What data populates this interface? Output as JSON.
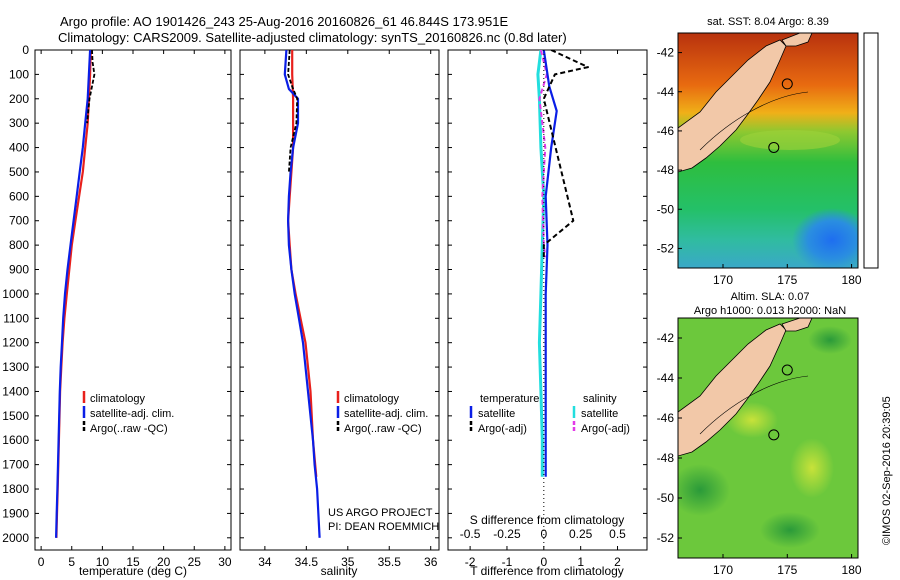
{
  "header": {
    "line1": "Argo profile: AO 1901426_243 25-Aug-2016 20160826_61 46.844S 173.951E",
    "line2": "Climatology: CARS2009. Satellite-adjusted climatology: synTS_20160826.nc (0.8d later)"
  },
  "colors": {
    "climatology": "#e8201c",
    "satellite": "#0a1ee6",
    "argo": "#000000",
    "sal_satellite": "#22dede",
    "sal_argo": "#e23ae8",
    "land": "#f2c8a8"
  },
  "chart_data": [
    {
      "type": "line",
      "name": "temperature-profile",
      "xlabel": "temperature (deg C)",
      "xlim": [
        -1,
        31
      ],
      "ylim": [
        0,
        2050
      ],
      "x_ticks": [
        0,
        5,
        10,
        15,
        20,
        25,
        30
      ],
      "y_ticks": [
        0,
        100,
        200,
        300,
        400,
        500,
        600,
        700,
        800,
        900,
        1000,
        1100,
        1200,
        1300,
        1400,
        1500,
        1600,
        1700,
        1800,
        1900,
        2000
      ],
      "legend": [
        "climatology",
        "satellite-adj. clim.",
        "Argo(..raw -QC)"
      ],
      "series": [
        {
          "name": "climatology",
          "x": [
            8.1,
            8.0,
            7.8,
            7.6,
            7.2,
            6.8,
            6.2,
            5.6,
            5.0,
            4.6,
            4.2,
            3.8,
            3.5,
            3.3,
            3.1,
            3.0,
            2.9,
            2.8,
            2.7,
            2.6,
            2.5
          ],
          "y": [
            0,
            100,
            200,
            300,
            400,
            500,
            600,
            700,
            800,
            900,
            1000,
            1100,
            1200,
            1300,
            1400,
            1500,
            1600,
            1700,
            1800,
            1900,
            2000
          ]
        },
        {
          "name": "satellite-adj. clim.",
          "x": [
            8.0,
            7.8,
            7.6,
            7.2,
            6.8,
            6.3,
            5.8,
            5.3,
            4.8,
            4.3,
            3.9,
            3.6,
            3.4,
            3.2,
            3.05,
            2.95,
            2.85,
            2.75,
            2.65,
            2.55,
            2.45
          ],
          "y": [
            0,
            100,
            200,
            300,
            400,
            500,
            600,
            700,
            800,
            900,
            1000,
            1100,
            1200,
            1300,
            1400,
            1500,
            1600,
            1700,
            1800,
            1900,
            2000
          ]
        },
        {
          "name": "Argo(..raw -QC)",
          "x": [
            8.3,
            8.4,
            8.7,
            7.9,
            7.5
          ],
          "y": [
            0,
            50,
            100,
            200,
            300
          ]
        }
      ]
    },
    {
      "type": "line",
      "name": "salinity-profile",
      "xlabel": "salinity",
      "xlim": [
        33.7,
        36.1
      ],
      "ylim": [
        0,
        2050
      ],
      "x_ticks": [
        34,
        34.5,
        35,
        35.5,
        36
      ],
      "legend": [
        "climatology",
        "satellite-adj. clim.",
        "Argo(..raw -QC)"
      ],
      "annotation": [
        "US ARGO PROJECT",
        "PI: DEAN ROEMMICH"
      ],
      "series": [
        {
          "name": "climatology",
          "x": [
            34.33,
            34.33,
            34.34,
            34.34,
            34.32,
            34.3,
            34.28,
            34.3,
            34.32,
            34.37,
            34.43,
            34.49,
            34.55,
            34.58,
            34.62
          ],
          "y": [
            0,
            100,
            200,
            400,
            500,
            600,
            700,
            800,
            900,
            1000,
            1100,
            1200,
            1400,
            1600,
            1750
          ]
        },
        {
          "name": "satellite-adj. clim.",
          "x": [
            34.26,
            34.24,
            34.29,
            34.4,
            34.4,
            34.34,
            34.31,
            34.29,
            34.28,
            34.29,
            34.32,
            34.36,
            34.41,
            34.46,
            34.52,
            34.58,
            34.6,
            34.63,
            34.66
          ],
          "y": [
            0,
            100,
            160,
            200,
            300,
            400,
            500,
            600,
            700,
            800,
            900,
            1000,
            1100,
            1200,
            1400,
            1600,
            1700,
            1800,
            2000
          ]
        },
        {
          "name": "Argo(..raw -QC)",
          "x": [
            34.3,
            34.28,
            34.33,
            34.39,
            34.38,
            34.31,
            34.29
          ],
          "y": [
            0,
            100,
            150,
            200,
            300,
            400,
            500
          ]
        }
      ]
    },
    {
      "type": "line",
      "name": "difference-profile",
      "xlabel": "T difference from climatology",
      "top_xlabel": "S difference from climatology",
      "xlim": [
        -2.6,
        2.8
      ],
      "x_ticks": [
        -2,
        -1,
        0,
        1,
        2
      ],
      "top_ticks": [
        "-0.5",
        "-0.25",
        "0",
        "0.25",
        "0.5"
      ],
      "legend_titles": [
        "temperature",
        "salinity"
      ],
      "legend": [
        "satellite",
        "Argo(-adj)",
        "satellite",
        "Argo(-adj)"
      ],
      "series": [
        {
          "name": "T satellite",
          "x": [
            0.0,
            0.1,
            0.15,
            0.35,
            0.2,
            0.05,
            0.1,
            0.05,
            0.05,
            0.05,
            0.05,
            0.05
          ],
          "y": [
            0,
            100,
            150,
            250,
            400,
            600,
            800,
            1000,
            1200,
            1400,
            1600,
            1750
          ]
        },
        {
          "name": "T Argo(-adj)",
          "x": [
            0.2,
            1.2,
            0.3,
            0.0,
            0.8,
            0.0,
            0.0
          ],
          "y": [
            0,
            70,
            100,
            200,
            700,
            800,
            850
          ]
        },
        {
          "name": "S satellite",
          "x": [
            -0.02,
            -0.04,
            -0.03,
            -0.02,
            0.0,
            -0.01,
            -0.02,
            -0.03,
            -0.02,
            -0.01,
            -0.01
          ],
          "y": [
            0,
            100,
            200,
            400,
            600,
            800,
            1000,
            1200,
            1400,
            1600,
            1750
          ]
        },
        {
          "name": "S Argo(-adj)",
          "x": [
            -0.02,
            0.02,
            -0.03,
            0.01,
            -0.01,
            0.0,
            0.01
          ],
          "y": [
            0,
            100,
            200,
            400,
            600,
            800,
            850
          ]
        }
      ]
    },
    {
      "type": "heatmap",
      "name": "sst-map",
      "title": "sat. SST: 8.04 Argo: 8.39",
      "x_ticks": [
        170,
        175,
        180
      ],
      "y_ticks": [
        -42,
        -44,
        -46,
        -48,
        -50,
        -52
      ],
      "xlim": [
        166.5,
        180.5
      ],
      "ylim": [
        -53,
        -41
      ]
    },
    {
      "type": "heatmap",
      "name": "sla-map",
      "title": [
        "Altim. SLA: 0.07",
        "Argo h1000: 0.013 h2000: NaN"
      ],
      "x_ticks": [
        170,
        175,
        180
      ],
      "y_ticks": [
        -42,
        -44,
        -46,
        -48,
        -50,
        -52
      ],
      "xlim": [
        166.5,
        180.5
      ],
      "ylim": [
        -53,
        -41
      ]
    }
  ],
  "credit": "©IMOS 02-Sep-2016 20:39:05"
}
